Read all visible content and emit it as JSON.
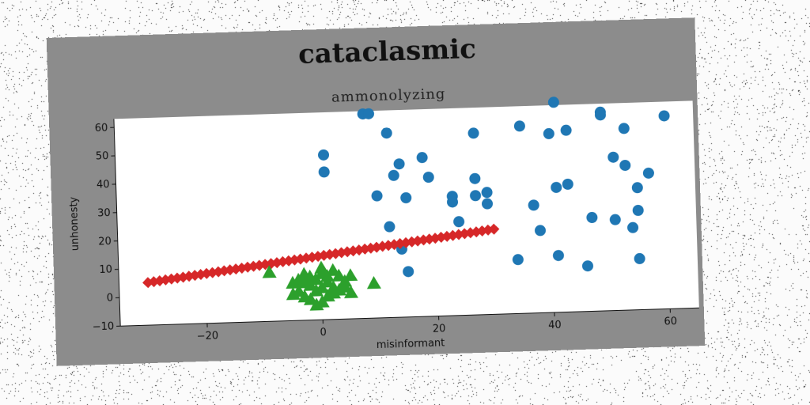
{
  "chart_data": {
    "type": "scatter",
    "title": "cataclasmic",
    "subtitle": "ammonolyzing",
    "xlabel": "misinformant",
    "ylabel": "unhonesty",
    "xlim": [
      -35,
      65
    ],
    "ylim": [
      -10,
      63
    ],
    "xticks": [
      -20,
      0,
      20,
      40,
      60
    ],
    "yticks": [
      -10,
      0,
      10,
      20,
      30,
      40,
      50,
      60
    ],
    "grid": false,
    "legend": "none",
    "series": [
      {
        "marker": "circle",
        "color": "#1f77b4",
        "points": [
          [
            8,
            62
          ],
          [
            9,
            62
          ],
          [
            12,
            55
          ],
          [
            1,
            48
          ],
          [
            1,
            42
          ],
          [
            14,
            44
          ],
          [
            13,
            40
          ],
          [
            18,
            46
          ],
          [
            19,
            39
          ],
          [
            10,
            33
          ],
          [
            15,
            32
          ],
          [
            12,
            22
          ],
          [
            14,
            14
          ],
          [
            15,
            6
          ],
          [
            23,
            32
          ],
          [
            23,
            30
          ],
          [
            24,
            23
          ],
          [
            27,
            38
          ],
          [
            27,
            32
          ],
          [
            29,
            33
          ],
          [
            29,
            29
          ],
          [
            27,
            54
          ],
          [
            35,
            56
          ],
          [
            40,
            53
          ],
          [
            41,
            64
          ],
          [
            43,
            54
          ],
          [
            37,
            28
          ],
          [
            38,
            19
          ],
          [
            34,
            9
          ],
          [
            41,
            34
          ],
          [
            43,
            35
          ],
          [
            41,
            10
          ],
          [
            49,
            60
          ],
          [
            49,
            59
          ],
          [
            51,
            44
          ],
          [
            47,
            23
          ],
          [
            46,
            6
          ],
          [
            51,
            22
          ],
          [
            53,
            41
          ],
          [
            53,
            54
          ],
          [
            54,
            19
          ],
          [
            55,
            33
          ],
          [
            55,
            25
          ],
          [
            55,
            8
          ],
          [
            57,
            38
          ],
          [
            60,
            58
          ]
        ]
      },
      {
        "marker": "diamond",
        "color": "#d62728",
        "line_from": [
          -30,
          5
        ],
        "line_to": [
          30,
          20
        ],
        "count": 60
      },
      {
        "marker": "triangle",
        "color": "#2ca02c",
        "points": [
          [
            -9,
            7
          ],
          [
            -5,
            3
          ],
          [
            -4,
            4
          ],
          [
            -3,
            3
          ],
          [
            -2,
            5
          ],
          [
            -1,
            4
          ],
          [
            0,
            6
          ],
          [
            0,
            8
          ],
          [
            1,
            3
          ],
          [
            1,
            5
          ],
          [
            2,
            7
          ],
          [
            2,
            1
          ],
          [
            3,
            5
          ],
          [
            -1,
            0
          ],
          [
            0,
            1
          ],
          [
            -5,
            -1
          ],
          [
            -4,
            0
          ],
          [
            -3,
            -2
          ],
          [
            -2,
            -3
          ],
          [
            -1,
            -5
          ],
          [
            2,
            -1
          ],
          [
            3,
            0
          ],
          [
            4,
            1
          ],
          [
            5,
            5
          ],
          [
            5,
            -1
          ],
          [
            -2,
            2
          ],
          [
            1,
            -2
          ],
          [
            4,
            3
          ],
          [
            -3,
            6
          ],
          [
            0,
            -4
          ],
          [
            9,
            2
          ]
        ]
      }
    ]
  }
}
